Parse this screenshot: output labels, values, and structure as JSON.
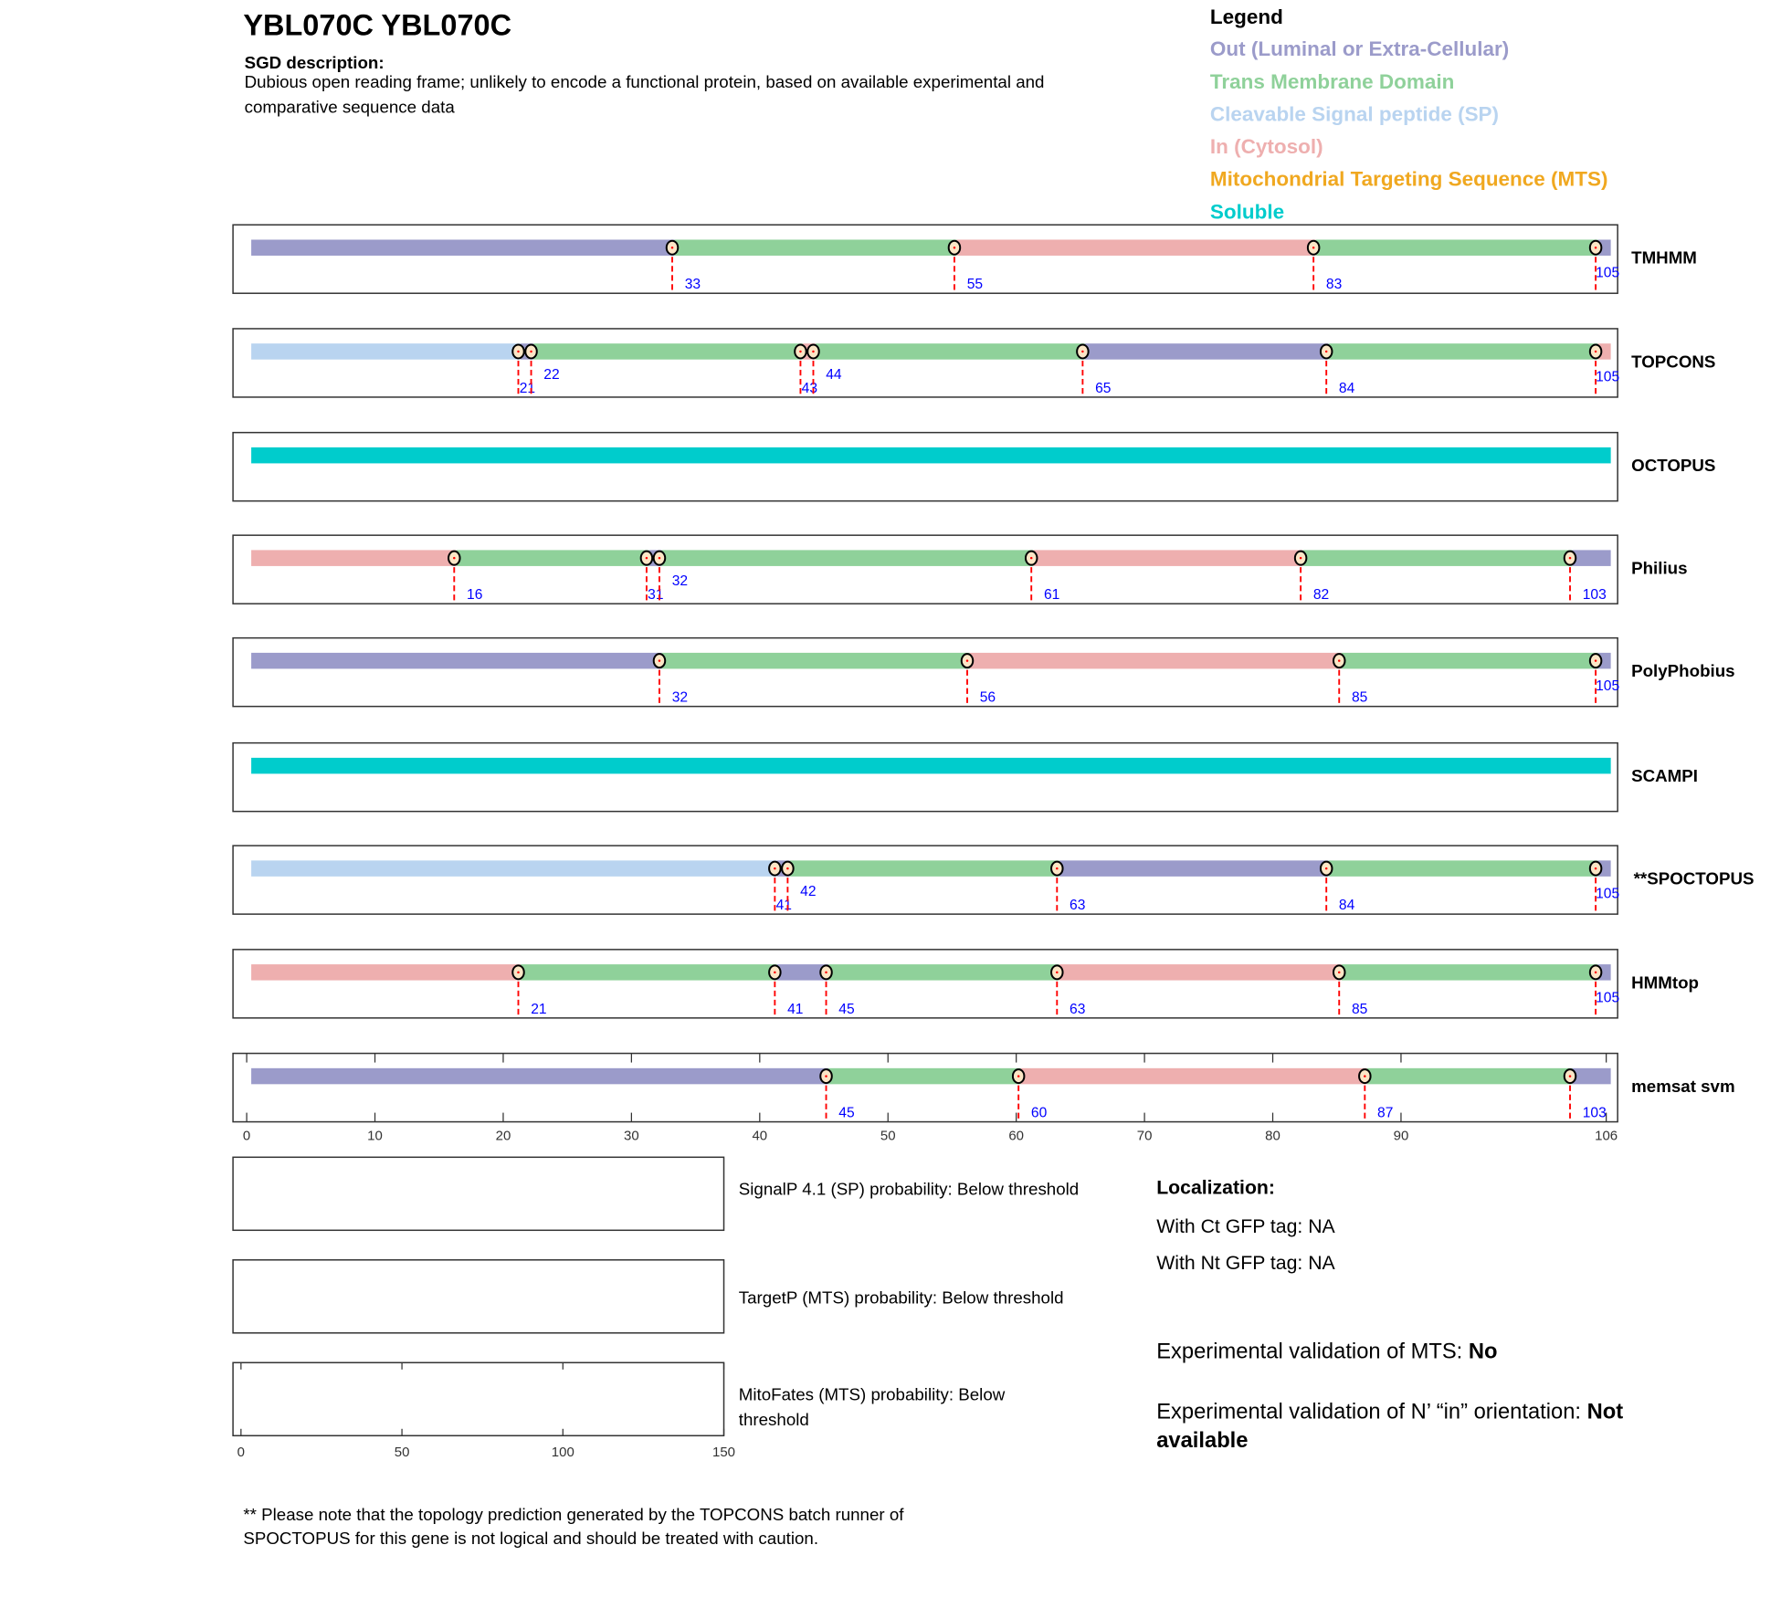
{
  "header": {
    "title": "YBL070C  YBL070C",
    "desc_label": "SGD description:",
    "desc_line1": "Dubious open reading frame; unlikely to encode a functional protein, based on available experimental and",
    "desc_line2": "comparative sequence data"
  },
  "legend": {
    "title": "Legend",
    "items": [
      {
        "key": "out",
        "label": "Out (Luminal or Extra-Cellular)",
        "color": "#9b9bca"
      },
      {
        "key": "tm",
        "label": "Trans Membrane Domain",
        "color": "#8fd19a"
      },
      {
        "key": "sp",
        "label": "Cleavable Signal peptide (SP)",
        "color": "#b9d4f0"
      },
      {
        "key": "in",
        "label": "In (Cytosol)",
        "color": "#eeafaf"
      },
      {
        "key": "mts",
        "label": "Mitochondrial Targeting Sequence (MTS)",
        "color": "#f0a820"
      },
      {
        "key": "sol",
        "label": "Soluble",
        "color": "#00cccc"
      }
    ]
  },
  "chart_data": {
    "type": "topology-track",
    "xlim": [
      0,
      106
    ],
    "x_ticks": [
      0,
      10,
      20,
      30,
      40,
      50,
      60,
      70,
      80,
      90,
      106
    ],
    "predictors": [
      {
        "name": "TMHMM",
        "segments": [
          [
            "out",
            0,
            33
          ],
          [
            "tm",
            33,
            55
          ],
          [
            "in",
            55,
            83
          ],
          [
            "tm",
            83,
            105
          ],
          [
            "out",
            105,
            106
          ]
        ],
        "markers": [
          33,
          55,
          83,
          105
        ]
      },
      {
        "name": "TOPCONS",
        "segments": [
          [
            "sp",
            0,
            21
          ],
          [
            "out",
            21,
            22
          ],
          [
            "tm",
            22,
            43
          ],
          [
            "in",
            43,
            44
          ],
          [
            "tm",
            44,
            65
          ],
          [
            "out",
            65,
            84
          ],
          [
            "tm",
            84,
            105
          ],
          [
            "in",
            105,
            106
          ]
        ],
        "markers": [
          21,
          22,
          43,
          44,
          65,
          84,
          105
        ]
      },
      {
        "name": "OCTOPUS",
        "segments": [
          [
            "sol",
            0,
            106
          ]
        ],
        "markers": []
      },
      {
        "name": "Philius",
        "segments": [
          [
            "in",
            0,
            16
          ],
          [
            "tm",
            16,
            31
          ],
          [
            "out",
            31,
            32
          ],
          [
            "tm",
            32,
            61
          ],
          [
            "in",
            61,
            82
          ],
          [
            "tm",
            82,
            103
          ],
          [
            "out",
            103,
            106
          ]
        ],
        "markers": [
          16,
          31,
          32,
          61,
          82,
          103
        ]
      },
      {
        "name": "PolyPhobius",
        "segments": [
          [
            "out",
            0,
            32
          ],
          [
            "tm",
            32,
            56
          ],
          [
            "in",
            56,
            85
          ],
          [
            "tm",
            85,
            105
          ],
          [
            "out",
            105,
            106
          ]
        ],
        "markers": [
          32,
          56,
          85,
          105
        ]
      },
      {
        "name": "SCAMPI",
        "segments": [
          [
            "sol",
            0,
            106
          ]
        ],
        "markers": []
      },
      {
        "name": "**SPOCTOPUS",
        "segments": [
          [
            "sp",
            0,
            41
          ],
          [
            "out",
            41,
            42
          ],
          [
            "tm",
            42,
            63
          ],
          [
            "out",
            63,
            84
          ],
          [
            "tm",
            84,
            105
          ],
          [
            "out",
            105,
            106
          ]
        ],
        "markers": [
          41,
          42,
          63,
          84,
          105
        ]
      },
      {
        "name": "HMMtop",
        "segments": [
          [
            "in",
            0,
            21
          ],
          [
            "tm",
            21,
            41
          ],
          [
            "out",
            41,
            45
          ],
          [
            "tm",
            45,
            63
          ],
          [
            "in",
            63,
            85
          ],
          [
            "tm",
            85,
            105
          ],
          [
            "out",
            105,
            106
          ]
        ],
        "markers": [
          21,
          41,
          45,
          63,
          85,
          105
        ]
      },
      {
        "name": "memsat svm",
        "segments": [
          [
            "out",
            0,
            45
          ],
          [
            "tm",
            45,
            60
          ],
          [
            "in",
            60,
            87
          ],
          [
            "tm",
            87,
            103
          ],
          [
            "out",
            103,
            106
          ]
        ],
        "markers": [
          45,
          60,
          87,
          103
        ]
      }
    ],
    "prob_xlim": [
      0,
      150
    ],
    "prob_ticks": [
      0,
      50,
      100,
      150
    ]
  },
  "probabilities": {
    "signalp": "SignalP 4.1 (SP) probability: Below threshold",
    "targetp": "TargetP (MTS) probability: Below threshold",
    "mitofates1": "MitoFates (MTS) probability: Below",
    "mitofates2": "threshold"
  },
  "localization": {
    "title": "Localization:",
    "ct": "With Ct GFP tag: NA",
    "nt": "With Nt GFP tag: NA",
    "mts_label": "Experimental validation of MTS: ",
    "mts_value": "No",
    "orient_label": "Experimental validation of N’ “in” orientation: ",
    "orient_value1": "Not",
    "orient_value2": "available"
  },
  "note": {
    "line1": "** Please note that the topology prediction generated by the TOPCONS batch runner of",
    "line2": "SPOCTOPUS for this gene is not logical and should be treated with caution."
  }
}
